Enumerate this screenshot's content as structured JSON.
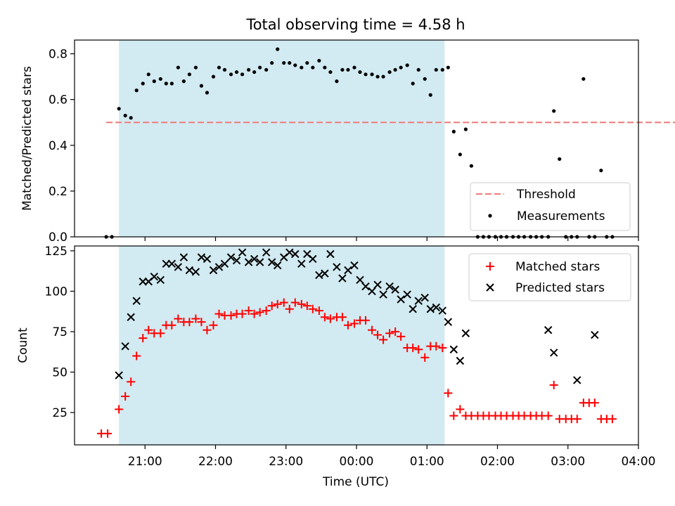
{
  "figure": {
    "title": "Total observing time = 4.58 h",
    "xlabel": "Time (UTC)"
  },
  "colors": {
    "span": "#add8e6",
    "threshold": "#f08080",
    "measurement": "#000000",
    "matched": "#ff0000",
    "predicted": "#000000"
  },
  "chart_data": [
    {
      "type": "scatter",
      "panel": "top",
      "ylabel": "Matched/Predicted stars",
      "xlim_hours": [
        20.0,
        28.0
      ],
      "ylim": [
        0,
        0.86
      ],
      "yticks": [
        0.0,
        0.2,
        0.4,
        0.6,
        0.8
      ],
      "ytick_labels": [
        "0.0",
        "0.2",
        "0.4",
        "0.6",
        "0.8"
      ],
      "observing_span_hours": [
        20.63,
        25.25
      ],
      "threshold": {
        "name": "Threshold",
        "value": 0.5,
        "x_range_hours": [
          20.45,
          28.62
        ]
      },
      "legend": {
        "position": "lower right",
        "entries": [
          "Threshold",
          "Measurements"
        ]
      },
      "series": [
        {
          "name": "Measurements",
          "x_hours": [
            20.45,
            20.53,
            20.63,
            20.72,
            20.8,
            20.88,
            20.97,
            21.05,
            21.13,
            21.22,
            21.3,
            21.38,
            21.47,
            21.55,
            21.63,
            21.72,
            21.8,
            21.88,
            21.97,
            22.05,
            22.13,
            22.22,
            22.3,
            22.38,
            22.47,
            22.55,
            22.63,
            22.72,
            22.8,
            22.88,
            22.97,
            23.05,
            23.13,
            23.22,
            23.3,
            23.38,
            23.47,
            23.55,
            23.63,
            23.72,
            23.8,
            23.88,
            23.97,
            24.05,
            24.13,
            24.22,
            24.3,
            24.38,
            24.47,
            24.55,
            24.63,
            24.72,
            24.8,
            24.88,
            24.97,
            25.05,
            25.13,
            25.22,
            25.3,
            25.38,
            25.47,
            25.55,
            25.63,
            25.72,
            25.8,
            25.88,
            25.97,
            26.05,
            26.13,
            26.22,
            26.3,
            26.38,
            26.47,
            26.55,
            26.63,
            26.72,
            26.8,
            26.88,
            26.97,
            27.05,
            27.13,
            27.22,
            27.3,
            27.38,
            27.47,
            27.55,
            27.63
          ],
          "values": [
            0.0,
            0.0,
            0.56,
            0.53,
            0.52,
            0.64,
            0.67,
            0.71,
            0.68,
            0.69,
            0.67,
            0.67,
            0.74,
            0.68,
            0.71,
            0.74,
            0.66,
            0.63,
            0.7,
            0.74,
            0.73,
            0.71,
            0.72,
            0.71,
            0.73,
            0.72,
            0.74,
            0.73,
            0.76,
            0.82,
            0.76,
            0.76,
            0.75,
            0.74,
            0.76,
            0.74,
            0.77,
            0.74,
            0.72,
            0.68,
            0.73,
            0.73,
            0.74,
            0.72,
            0.71,
            0.71,
            0.7,
            0.7,
            0.72,
            0.73,
            0.74,
            0.75,
            0.67,
            0.73,
            0.69,
            0.62,
            0.73,
            0.73,
            0.74,
            0.46,
            0.36,
            0.47,
            0.31,
            0.0,
            0.0,
            0.0,
            0.0,
            0.0,
            0.0,
            0.0,
            0.0,
            0.0,
            0.0,
            0.0,
            0.0,
            0.0,
            0.55,
            0.34,
            0.0,
            0.0,
            0.0,
            0.69,
            0.0,
            0.0,
            0.29,
            0.0,
            0.0
          ]
        }
      ]
    },
    {
      "type": "scatter",
      "panel": "bottom",
      "ylabel": "Count",
      "xlabel": "Time (UTC)",
      "xlim_hours": [
        20.0,
        28.0
      ],
      "ylim": [
        5,
        128
      ],
      "yticks": [
        25,
        50,
        75,
        100,
        125
      ],
      "ytick_labels": [
        "25",
        "50",
        "75",
        "100",
        "125"
      ],
      "xticks_hours": [
        21,
        22,
        23,
        24,
        25,
        26,
        27,
        28
      ],
      "xtick_labels": [
        "21:00",
        "22:00",
        "23:00",
        "00:00",
        "01:00",
        "02:00",
        "03:00",
        "04:00"
      ],
      "observing_span_hours": [
        20.63,
        25.25
      ],
      "legend": {
        "position": "upper right",
        "entries": [
          "Matched stars",
          "Predicted stars"
        ]
      },
      "series": [
        {
          "name": "Matched stars",
          "marker": "plus",
          "x_hours": [
            20.38,
            20.47,
            20.63,
            20.72,
            20.8,
            20.88,
            20.97,
            21.05,
            21.13,
            21.22,
            21.3,
            21.38,
            21.47,
            21.55,
            21.63,
            21.72,
            21.8,
            21.88,
            21.97,
            22.05,
            22.13,
            22.22,
            22.3,
            22.38,
            22.47,
            22.55,
            22.63,
            22.72,
            22.8,
            22.88,
            22.97,
            23.05,
            23.13,
            23.22,
            23.3,
            23.38,
            23.47,
            23.55,
            23.63,
            23.72,
            23.8,
            23.88,
            23.97,
            24.05,
            24.13,
            24.22,
            24.3,
            24.38,
            24.47,
            24.55,
            24.63,
            24.72,
            24.8,
            24.88,
            24.97,
            25.05,
            25.13,
            25.22,
            25.3,
            25.38,
            25.47,
            25.55,
            25.63,
            25.72,
            25.8,
            25.88,
            25.97,
            26.05,
            26.13,
            26.22,
            26.3,
            26.38,
            26.47,
            26.55,
            26.63,
            26.72,
            26.8,
            26.88,
            26.97,
            27.05,
            27.13,
            27.22,
            27.3,
            27.38,
            27.47,
            27.55,
            27.63
          ],
          "values": [
            12,
            12,
            27,
            35,
            44,
            60,
            71,
            76,
            74,
            74,
            79,
            79,
            83,
            81,
            81,
            83,
            81,
            76,
            79,
            86,
            85,
            85,
            86,
            86,
            88,
            86,
            87,
            88,
            91,
            92,
            93,
            89,
            93,
            92,
            91,
            89,
            88,
            84,
            83,
            84,
            84,
            79,
            80,
            82,
            82,
            76,
            73,
            70,
            74,
            75,
            72,
            65,
            65,
            64,
            59,
            66,
            66,
            65,
            37,
            23,
            27,
            23,
            23,
            23,
            23,
            23,
            23,
            23,
            23,
            23,
            23,
            23,
            23,
            23,
            23,
            23,
            42,
            21,
            21,
            21,
            21,
            31,
            31,
            31,
            21,
            21,
            21
          ]
        },
        {
          "name": "Predicted stars",
          "marker": "x",
          "x_hours": [
            20.63,
            20.72,
            20.8,
            20.88,
            20.97,
            21.05,
            21.13,
            21.22,
            21.3,
            21.38,
            21.47,
            21.55,
            21.63,
            21.72,
            21.8,
            21.88,
            21.97,
            22.05,
            22.13,
            22.22,
            22.3,
            22.38,
            22.47,
            22.55,
            22.63,
            22.72,
            22.8,
            22.88,
            22.97,
            23.05,
            23.13,
            23.22,
            23.3,
            23.38,
            23.47,
            23.55,
            23.63,
            23.72,
            23.8,
            23.88,
            23.97,
            24.05,
            24.13,
            24.22,
            24.3,
            24.38,
            24.47,
            24.55,
            24.63,
            24.72,
            24.8,
            24.88,
            24.97,
            25.05,
            25.13,
            25.22,
            25.3,
            25.38,
            25.47,
            25.55,
            26.72,
            26.8,
            27.13,
            27.38
          ],
          "values": [
            48,
            66,
            84,
            94,
            106,
            106,
            109,
            107,
            117,
            117,
            115,
            121,
            113,
            112,
            121,
            120,
            113,
            115,
            117,
            121,
            119,
            124,
            118,
            120,
            118,
            124,
            118,
            116,
            121,
            124,
            123,
            117,
            123,
            120,
            110,
            111,
            123,
            115,
            108,
            113,
            116,
            107,
            103,
            100,
            104,
            98,
            103,
            101,
            95,
            98,
            89,
            94,
            96,
            89,
            90,
            88,
            81,
            64,
            57,
            74,
            76,
            62,
            45,
            73
          ]
        }
      ]
    }
  ]
}
